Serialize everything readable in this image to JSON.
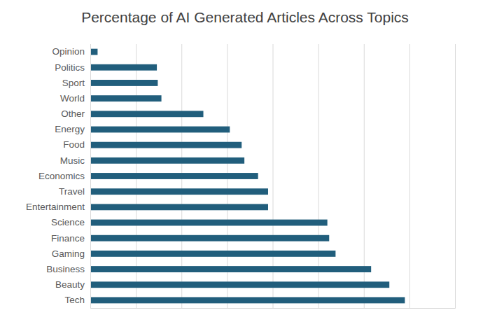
{
  "chart_data": {
    "type": "bar",
    "orientation": "horizontal",
    "title": "Percentage of AI Generated Articles Across Topics",
    "categories": [
      "Opinion",
      "Politics",
      "Sport",
      "World",
      "Other",
      "Energy",
      "Food",
      "Music",
      "Economics",
      "Travel",
      "Entertainment",
      "Science",
      "Finance",
      "Gaming",
      "Business",
      "Beauty",
      "Tech"
    ],
    "values": [
      0.8,
      7.3,
      7.4,
      7.8,
      12.4,
      15.3,
      16.6,
      16.9,
      18.4,
      19.5,
      19.5,
      26.0,
      26.2,
      26.9,
      30.8,
      32.8,
      34.5
    ],
    "color": "#215e7c",
    "xlim": [
      0,
      40
    ],
    "xticks": [
      0,
      5,
      10,
      15,
      20,
      25,
      30,
      35,
      40
    ],
    "grid": true,
    "tick_labels": false
  }
}
